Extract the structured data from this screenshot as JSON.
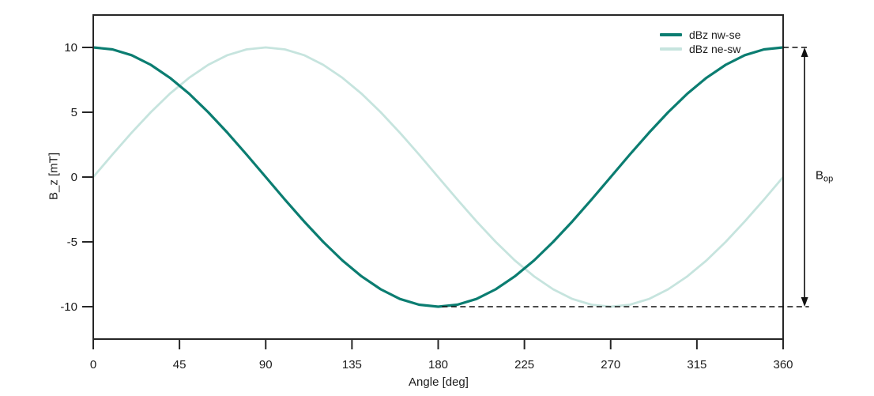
{
  "figure": {
    "background": "#ffffff",
    "text_color": "#1c1c1c",
    "spine_color": "#262626",
    "guide_color": "#111111"
  },
  "chart_data": {
    "type": "line",
    "title": "",
    "xlabel": "Angle [deg]",
    "ylabel": "B_z [mT]",
    "xlim": [
      0,
      360
    ],
    "ylim": [
      -12.5,
      12.5
    ],
    "xticks": [
      0,
      45,
      90,
      135,
      180,
      225,
      270,
      315,
      360
    ],
    "yticks": [
      10,
      5,
      0,
      -5,
      -10
    ],
    "grid": false,
    "legend_position": "top-right-inside",
    "x": [
      0,
      10,
      20,
      30,
      40,
      50,
      60,
      70,
      80,
      90,
      100,
      110,
      120,
      130,
      140,
      150,
      160,
      170,
      180,
      190,
      200,
      210,
      220,
      230,
      240,
      250,
      260,
      270,
      280,
      290,
      300,
      310,
      320,
      330,
      340,
      350,
      360
    ],
    "series": [
      {
        "name": "dBz nw-se",
        "color": "#0b7d71",
        "line_width": 3.2,
        "values": [
          10,
          9.85,
          9.4,
          8.66,
          7.66,
          6.43,
          5,
          3.42,
          1.74,
          0,
          -1.74,
          -3.42,
          -5,
          -6.43,
          -7.66,
          -8.66,
          -9.4,
          -9.85,
          -10,
          -9.85,
          -9.4,
          -8.66,
          -7.66,
          -6.43,
          -5,
          -3.42,
          -1.74,
          0,
          1.74,
          3.42,
          5,
          6.43,
          7.66,
          8.66,
          9.4,
          9.85,
          10
        ]
      },
      {
        "name": "dBz ne-sw",
        "color": "#c6e4de",
        "line_width": 2.8,
        "values": [
          0,
          1.74,
          3.42,
          5,
          6.43,
          7.66,
          8.66,
          9.4,
          9.85,
          10,
          9.85,
          9.4,
          8.66,
          7.66,
          6.43,
          5,
          3.42,
          1.74,
          0,
          -1.74,
          -3.42,
          -5,
          -6.43,
          -7.66,
          -8.66,
          -9.4,
          -9.85,
          -10,
          -9.85,
          -9.4,
          -8.66,
          -7.66,
          -6.43,
          -5,
          -3.42,
          -1.74,
          0
        ]
      }
    ],
    "annotation": {
      "label_base": "B",
      "label_sub": "op",
      "arrow_x_deg": 371.2,
      "arrow_top_y": 10,
      "arrow_bottom_y": -10,
      "dash_top": {
        "y": 10,
        "x_from_deg": 360,
        "x_to_deg": 373.5
      },
      "dash_bottom": {
        "y": -10,
        "x_from_deg": 182,
        "x_to_deg": 373.5
      }
    }
  }
}
